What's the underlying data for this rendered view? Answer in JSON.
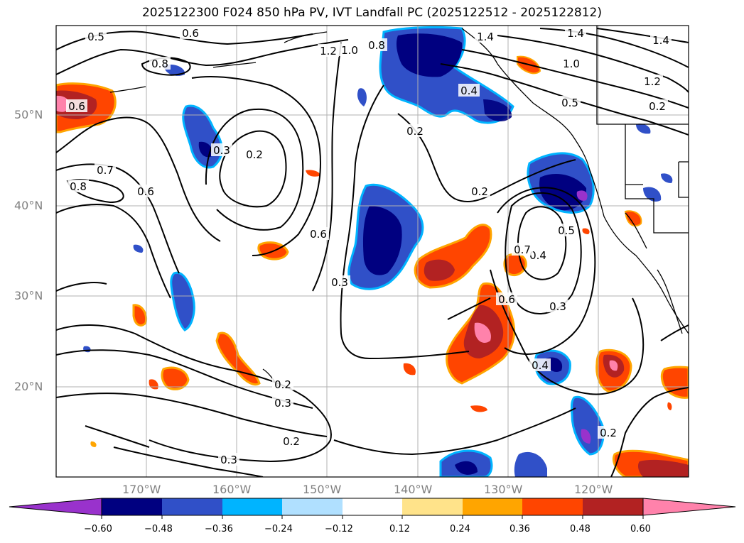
{
  "title": "2025122300 F024 850 hPa PV, IVT Landfall PC (2025122512 - 2025122812)",
  "lat_ticks": [
    "50°N",
    "40°N",
    "30°N",
    "20°N"
  ],
  "lon_ticks": [
    "170°W",
    "160°W",
    "150°W",
    "140°W",
    "130°W",
    "120°W"
  ],
  "contour_labels": [
    "0.5",
    "0.6",
    "0.8",
    "1.2",
    "1.0",
    "0.8",
    "1.4",
    "1.4",
    "1.4",
    "1.0",
    "1.2",
    "0.5",
    "0.4",
    "0.6",
    "0.3",
    "0.2",
    "0.7",
    "0.8",
    "0.6",
    "0.2",
    "0.6",
    "0.2",
    "0.3",
    "0.5",
    "0.4",
    "0.7",
    "0.6",
    "0.3",
    "0.4",
    "0.2",
    "0.3",
    "0.2",
    "0.3",
    "0.2",
    "0.2"
  ],
  "colorbar": {
    "labels": [
      "−0.60",
      "−0.48",
      "−0.36",
      "−0.24",
      "−0.12",
      "0.12",
      "0.24",
      "0.36",
      "0.48",
      "0.60"
    ],
    "colors": [
      "#9932CC",
      "#000080",
      "#3050C8",
      "#00B4FF",
      "#B0E0FF",
      "#FFFFFF",
      "#FFE38A",
      "#FFA500",
      "#FF4500",
      "#B22222",
      "#FF82AB"
    ]
  },
  "palette": {
    "neg_light": "#B0E0FF",
    "neg_mid": "#00B4FF",
    "neg_strong": "#3050C8",
    "neg_max": "#000080",
    "neg_extreme": "#9932CC",
    "pos_light": "#FFE38A",
    "pos_mid": "#FFA500",
    "pos_strong": "#FF4500",
    "pos_max": "#B22222",
    "pos_extreme": "#FF82AB"
  }
}
